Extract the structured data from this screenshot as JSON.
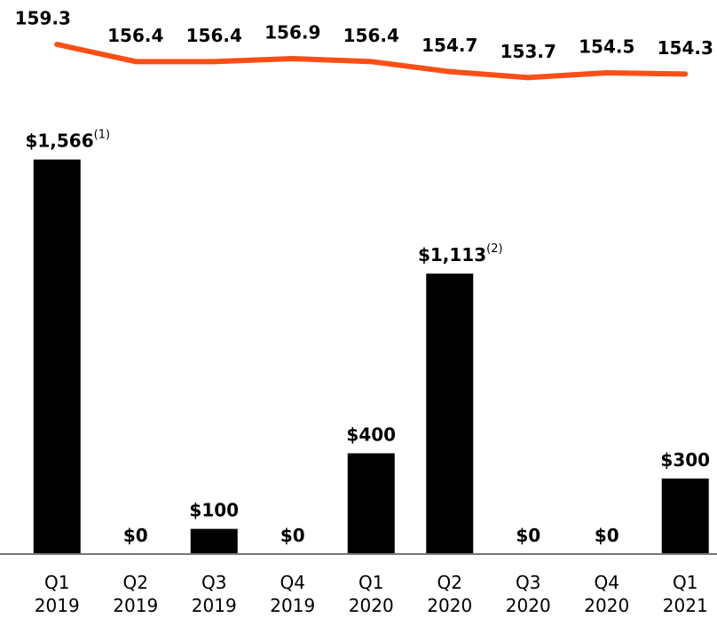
{
  "chart_data": [
    {
      "type": "line",
      "categories": [
        [
          "Q1",
          "2019"
        ],
        [
          "Q2",
          "2019"
        ],
        [
          "Q3",
          "2019"
        ],
        [
          "Q4",
          "2019"
        ],
        [
          "Q1",
          "2020"
        ],
        [
          "Q2",
          "2020"
        ],
        [
          "Q3",
          "2020"
        ],
        [
          "Q4",
          "2020"
        ],
        [
          "Q1",
          "2021"
        ]
      ],
      "values": [
        159.3,
        156.4,
        156.4,
        156.9,
        156.4,
        154.7,
        153.7,
        154.5,
        154.3
      ],
      "color": "#fc4f16",
      "ylim": [
        153,
        160
      ]
    },
    {
      "type": "bar",
      "categories": [
        [
          "Q1",
          "2019"
        ],
        [
          "Q2",
          "2019"
        ],
        [
          "Q3",
          "2019"
        ],
        [
          "Q4",
          "2019"
        ],
        [
          "Q1",
          "2020"
        ],
        [
          "Q2",
          "2020"
        ],
        [
          "Q3",
          "2020"
        ],
        [
          "Q4",
          "2020"
        ],
        [
          "Q1",
          "2021"
        ]
      ],
      "values": [
        1566,
        0,
        100,
        0,
        400,
        1113,
        0,
        0,
        300
      ],
      "value_labels": [
        "$1,566",
        "$0",
        "$100",
        "$0",
        "$400",
        "$1,113",
        "$0",
        "$0",
        "$300"
      ],
      "value_label_notes": [
        "(1)",
        null,
        null,
        null,
        null,
        "(2)",
        null,
        null,
        null
      ],
      "color": "#000000",
      "ylim": [
        0,
        1600
      ]
    }
  ]
}
